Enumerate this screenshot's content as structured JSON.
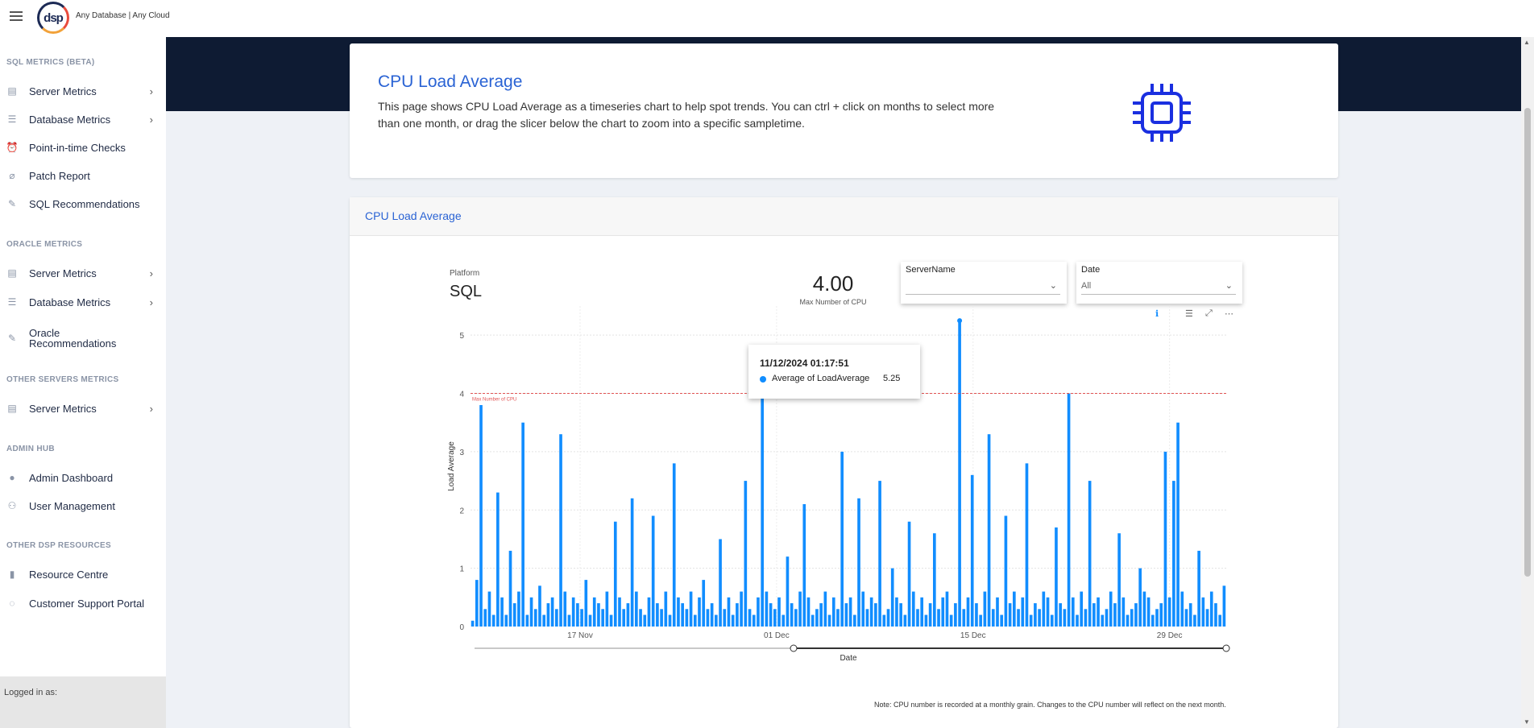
{
  "header": {
    "logo_text": "dsp",
    "tagline": "Any Database | Any Cloud"
  },
  "sidebar": {
    "sections": [
      {
        "title": "SQL METRICS (BETA)",
        "items": [
          {
            "label": "Server Metrics",
            "icon": "server-icon",
            "chevron": true
          },
          {
            "label": "Database Metrics",
            "icon": "database-icon",
            "chevron": true
          },
          {
            "label": "Point-in-time Checks",
            "icon": "alarm-clock-icon",
            "chevron": false
          },
          {
            "label": "Patch Report",
            "icon": "bandage-icon",
            "chevron": false
          },
          {
            "label": "SQL Recommendations",
            "icon": "wrench-icon",
            "chevron": false
          }
        ]
      },
      {
        "title": "ORACLE METRICS",
        "items": [
          {
            "label": "Server Metrics",
            "icon": "server-icon",
            "chevron": true
          },
          {
            "label": "Database Metrics",
            "icon": "database-icon",
            "chevron": true
          },
          {
            "label": "Oracle Recommendations",
            "icon": "wrench-icon",
            "chevron": false
          }
        ]
      },
      {
        "title": "OTHER SERVERS METRICS",
        "items": [
          {
            "label": "Server Metrics",
            "icon": "server-icon",
            "chevron": true
          }
        ]
      },
      {
        "title": "ADMIN HUB",
        "items": [
          {
            "label": "Admin Dashboard",
            "icon": "user-icon",
            "chevron": false
          },
          {
            "label": "User Management",
            "icon": "users-icon",
            "chevron": false
          }
        ]
      },
      {
        "title": "OTHER DSP RESOURCES",
        "items": [
          {
            "label": "Resource Centre",
            "icon": "bar-chart-icon",
            "chevron": false
          },
          {
            "label": "Customer Support Portal",
            "icon": "chat-icon",
            "chevron": false
          }
        ]
      }
    ],
    "logged_in_label": "Logged in as:"
  },
  "intro": {
    "title": "CPU Load Average",
    "description": "This page shows CPU Load Average as a timeseries chart to help spot trends. You can ctrl + click on months to select more than one month, or drag the slicer below the chart to zoom into a specific sampletime.",
    "icon": "cpu-chip-icon",
    "accent": "#2a63d4"
  },
  "report": {
    "header_title": "CPU Load Average",
    "platform_label": "Platform",
    "platform_value": "SQL",
    "kpi_value": "4.00",
    "kpi_label": "Max Number of CPU",
    "slicers": [
      {
        "title": "ServerName",
        "value": ""
      },
      {
        "title": "Date",
        "value": "All"
      }
    ],
    "tooltip": {
      "date": "11/12/2024 01:17:51",
      "series": "Average of LoadAverage",
      "value": "5.25"
    },
    "note": "Note: CPU number is recorded at a monthly grain. Changes to the CPU number will reflect on the next month."
  },
  "chart_data": {
    "type": "bar",
    "xlabel": "Date",
    "ylabel": "Load Average",
    "ylim": [
      0,
      5.5
    ],
    "yticks": [
      0,
      1,
      2,
      3,
      4,
      5
    ],
    "xticks": [
      "17 Nov",
      "01 Dec",
      "15 Dec",
      "29 Dec"
    ],
    "grid": true,
    "series_color": "#118dff",
    "reference_line": {
      "label": "Max Number of CPU",
      "value": 4.0,
      "color": "#e05353"
    },
    "series": [
      {
        "name": "Average of LoadAverage",
        "values": [
          0.1,
          0.8,
          3.8,
          0.3,
          0.6,
          0.2,
          2.3,
          0.5,
          0.2,
          1.3,
          0.4,
          0.6,
          3.5,
          0.2,
          0.5,
          0.3,
          0.7,
          0.2,
          0.4,
          0.5,
          0.3,
          3.3,
          0.6,
          0.2,
          0.5,
          0.4,
          0.3,
          0.8,
          0.2,
          0.5,
          0.4,
          0.3,
          0.6,
          0.2,
          1.8,
          0.5,
          0.3,
          0.4,
          2.2,
          0.6,
          0.3,
          0.2,
          0.5,
          1.9,
          0.4,
          0.3,
          0.6,
          0.2,
          2.8,
          0.5,
          0.4,
          0.3,
          0.6,
          0.2,
          0.5,
          0.8,
          0.3,
          0.4,
          0.2,
          1.5,
          0.3,
          0.5,
          0.2,
          0.4,
          0.6,
          2.5,
          0.3,
          0.2,
          0.5,
          4.3,
          0.6,
          0.4,
          0.3,
          0.5,
          0.2,
          1.2,
          0.4,
          0.3,
          0.6,
          2.1,
          0.5,
          0.2,
          0.3,
          0.4,
          0.6,
          0.2,
          0.5,
          0.3,
          3.0,
          0.4,
          0.5,
          0.2,
          2.2,
          0.6,
          0.3,
          0.5,
          0.4,
          2.5,
          0.2,
          0.3,
          1.0,
          0.5,
          0.4,
          0.2,
          1.8,
          0.6,
          0.3,
          0.5,
          0.2,
          0.4,
          1.6,
          0.3,
          0.5,
          0.6,
          0.2,
          0.4,
          5.25,
          0.3,
          0.5,
          2.6,
          0.4,
          0.2,
          0.6,
          3.3,
          0.3,
          0.5,
          0.2,
          1.9,
          0.4,
          0.6,
          0.3,
          0.5,
          2.8,
          0.2,
          0.4,
          0.3,
          0.6,
          0.5,
          0.2,
          1.7,
          0.4,
          0.3,
          4.0,
          0.5,
          0.2,
          0.6,
          0.3,
          2.5,
          0.4,
          0.5,
          0.2,
          0.3,
          0.6,
          0.4,
          1.6,
          0.5,
          0.2,
          0.3,
          0.4,
          1.0,
          0.6,
          0.5,
          0.2,
          0.3,
          0.4,
          3.0,
          0.5,
          2.5,
          3.5,
          0.6,
          0.3,
          0.4,
          0.2,
          1.3,
          0.5,
          0.3,
          0.6,
          0.4,
          0.2,
          0.7
        ]
      }
    ]
  }
}
